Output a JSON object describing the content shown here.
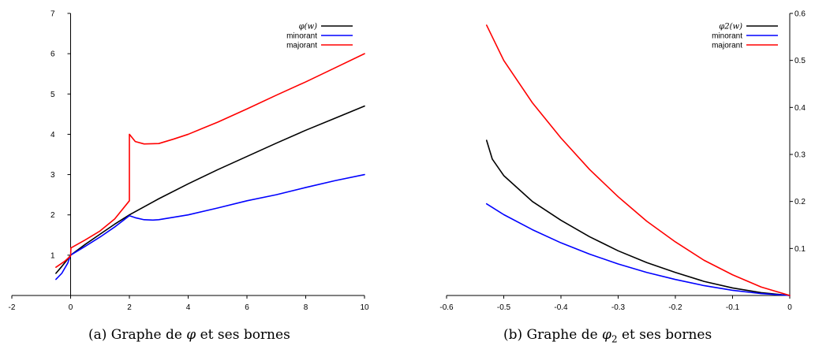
{
  "captions": {
    "a_prefix": "(a)  Graphe de ",
    "a_symbol": "φ",
    "a_suffix": " et ses bornes",
    "b_prefix": "(b)  Graphe de ",
    "b_symbol": "φ",
    "b_sub": "2",
    "b_suffix": " et ses bornes"
  },
  "chart_data": [
    {
      "type": "line",
      "title": "",
      "xlabel": "",
      "ylabel": "",
      "xlim": [
        -2,
        10
      ],
      "ylim": [
        0,
        7
      ],
      "x_ticks": [
        "-2",
        "0",
        "2",
        "4",
        "6",
        "8",
        "10"
      ],
      "y_ticks": [
        "1",
        "2",
        "3",
        "4",
        "5",
        "6",
        "7"
      ],
      "y_axis_position": "x = 0",
      "legend_position": "top-right",
      "grid": false,
      "series": [
        {
          "name": "φ(w)",
          "color": "#000000",
          "x": [
            -0.5,
            -0.3,
            -0.1,
            0,
            0.5,
            1,
            1.5,
            2,
            3,
            4,
            5,
            6,
            7,
            8,
            9,
            10
          ],
          "y": [
            0.55,
            0.72,
            0.9,
            1.0,
            1.27,
            1.52,
            1.77,
            2.0,
            2.4,
            2.77,
            3.12,
            3.45,
            3.78,
            4.1,
            4.4,
            4.7
          ]
        },
        {
          "name": "minorant",
          "color": "#0000ff",
          "x": [
            -0.5,
            -0.3,
            -0.1,
            0,
            0.5,
            1,
            1.5,
            2,
            2.2,
            2.5,
            2.8,
            3,
            4,
            5,
            6,
            7,
            8,
            9,
            10
          ],
          "y": [
            0.4,
            0.55,
            0.8,
            1.0,
            1.22,
            1.45,
            1.7,
            1.98,
            1.93,
            1.88,
            1.87,
            1.88,
            2.0,
            2.17,
            2.35,
            2.5,
            2.68,
            2.85,
            3.0
          ]
        },
        {
          "name": "majorant",
          "color": "#ff0000",
          "x": [
            -0.5,
            -0.2,
            0,
            0.01,
            0.5,
            1,
            1.5,
            2,
            2.0001,
            2.2,
            2.5,
            3,
            3.5,
            4,
            5,
            6,
            7,
            8,
            9,
            10
          ],
          "y": [
            0.7,
            0.85,
            0.98,
            1.18,
            1.38,
            1.6,
            1.9,
            2.35,
            4.0,
            3.82,
            3.76,
            3.77,
            3.88,
            4.0,
            4.3,
            4.63,
            4.97,
            5.3,
            5.65,
            6.0
          ]
        }
      ]
    },
    {
      "type": "line",
      "title": "",
      "xlabel": "",
      "ylabel": "",
      "xlim": [
        -0.6,
        0
      ],
      "ylim": [
        0,
        0.6
      ],
      "x_ticks": [
        "-0.6",
        "-0.5",
        "-0.4",
        "-0.3",
        "-0.2",
        "-0.1",
        "0"
      ],
      "y_ticks": [
        "0.1",
        "0.2",
        "0.3",
        "0.4",
        "0.5",
        "0.6"
      ],
      "y_axis_position": "right",
      "legend_position": "top-right",
      "grid": false,
      "series": [
        {
          "name": "φ2(w)",
          "color": "#000000",
          "x": [
            -0.53,
            -0.52,
            -0.5,
            -0.45,
            -0.4,
            -0.35,
            -0.3,
            -0.25,
            -0.2,
            -0.15,
            -0.1,
            -0.05,
            0
          ],
          "y": [
            0.33,
            0.29,
            0.255,
            0.2,
            0.16,
            0.125,
            0.095,
            0.07,
            0.049,
            0.03,
            0.016,
            0.006,
            0
          ]
        },
        {
          "name": "minorant",
          "color": "#0000ff",
          "x": [
            -0.53,
            -0.5,
            -0.45,
            -0.4,
            -0.35,
            -0.3,
            -0.25,
            -0.2,
            -0.15,
            -0.1,
            -0.05,
            0
          ],
          "y": [
            0.195,
            0.172,
            0.14,
            0.112,
            0.088,
            0.067,
            0.049,
            0.034,
            0.021,
            0.011,
            0.004,
            0
          ]
        },
        {
          "name": "majorant",
          "color": "#ff0000",
          "x": [
            -0.53,
            -0.5,
            -0.45,
            -0.4,
            -0.35,
            -0.3,
            -0.25,
            -0.2,
            -0.15,
            -0.1,
            -0.05,
            0
          ],
          "y": [
            0.575,
            0.5,
            0.41,
            0.335,
            0.268,
            0.21,
            0.158,
            0.114,
            0.075,
            0.044,
            0.018,
            0
          ]
        }
      ]
    }
  ]
}
